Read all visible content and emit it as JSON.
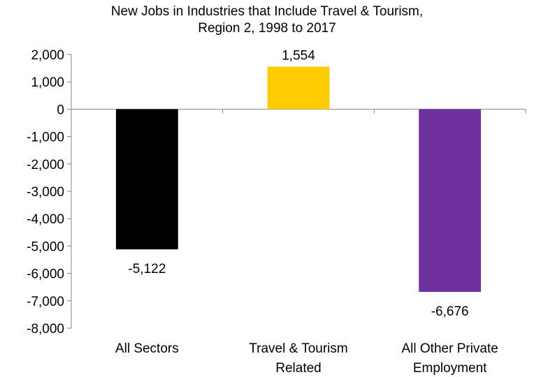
{
  "chart_data": {
    "type": "bar",
    "title_lines": [
      "New Jobs in Industries that Include Travel & Tourism,",
      "Region 2, 1998 to 2017"
    ],
    "categories": [
      [
        "All Sectors"
      ],
      [
        "Travel & Tourism",
        "Related"
      ],
      [
        "All Other Private",
        "Employment"
      ]
    ],
    "values": [
      -5122,
      1554,
      -6676
    ],
    "data_labels": [
      "-5,122",
      "1,554",
      "-6,676"
    ],
    "colors": [
      "#000000",
      "#FFCC00",
      "#7030A0"
    ],
    "ylim": [
      -8000,
      2000
    ],
    "yticks": [
      2000,
      1000,
      0,
      -1000,
      -2000,
      -3000,
      -4000,
      -5000,
      -6000,
      -7000,
      -8000
    ],
    "ytick_labels": [
      "2,000",
      "1,000",
      "0",
      "-1,000",
      "-2,000",
      "-3,000",
      "-4,000",
      "-5,000",
      "-6,000",
      "-7,000",
      "-8,000"
    ],
    "grid": false,
    "legend": "none"
  }
}
